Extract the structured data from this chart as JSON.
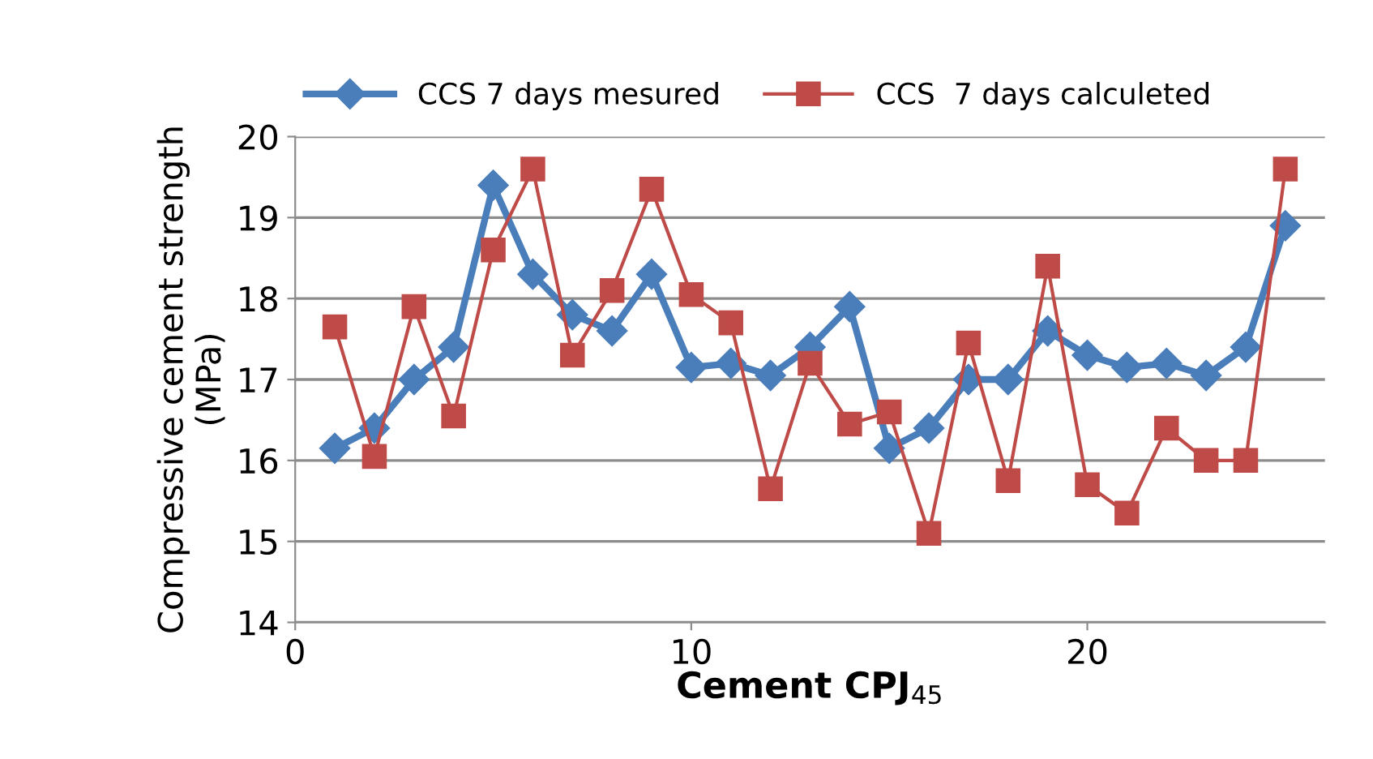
{
  "chart_data": {
    "type": "line",
    "xlabel": "Cement CPJ$_{45}$",
    "ylabel": "Compressive cement strength\n(MPa)",
    "x": [
      1,
      2,
      3,
      4,
      5,
      6,
      7,
      8,
      9,
      10,
      11,
      12,
      13,
      14,
      15,
      16,
      17,
      18,
      19,
      20,
      21,
      22,
      23,
      24,
      25
    ],
    "series": [
      {
        "name": "CCS 7 days mesured",
        "color": "#4a7ebb",
        "marker": "diamond",
        "values": [
          16.15,
          16.4,
          17.0,
          17.4,
          19.4,
          18.3,
          17.8,
          17.6,
          18.3,
          17.15,
          17.2,
          17.05,
          17.4,
          17.9,
          16.15,
          16.4,
          17.0,
          17.0,
          17.6,
          17.3,
          17.15,
          17.2,
          17.05,
          17.4,
          18.9
        ]
      },
      {
        "name": "CCS  7 days calculeted",
        "color": "#be4b48",
        "marker": "square",
        "values": [
          17.65,
          16.05,
          17.9,
          16.55,
          18.6,
          19.6,
          17.3,
          18.1,
          19.35,
          18.05,
          17.7,
          15.65,
          17.2,
          16.45,
          16.6,
          15.1,
          17.45,
          15.75,
          18.4,
          15.7,
          15.35,
          16.4,
          16.0,
          16.0,
          19.6
        ]
      }
    ],
    "xlim": [
      0,
      26
    ],
    "xticks": [
      0,
      10,
      20
    ],
    "ylim": [
      14,
      20
    ],
    "yticks": [
      14,
      15,
      16,
      17,
      18,
      19,
      20
    ],
    "grid": "y",
    "legend": "top",
    "line_style": "solid"
  }
}
